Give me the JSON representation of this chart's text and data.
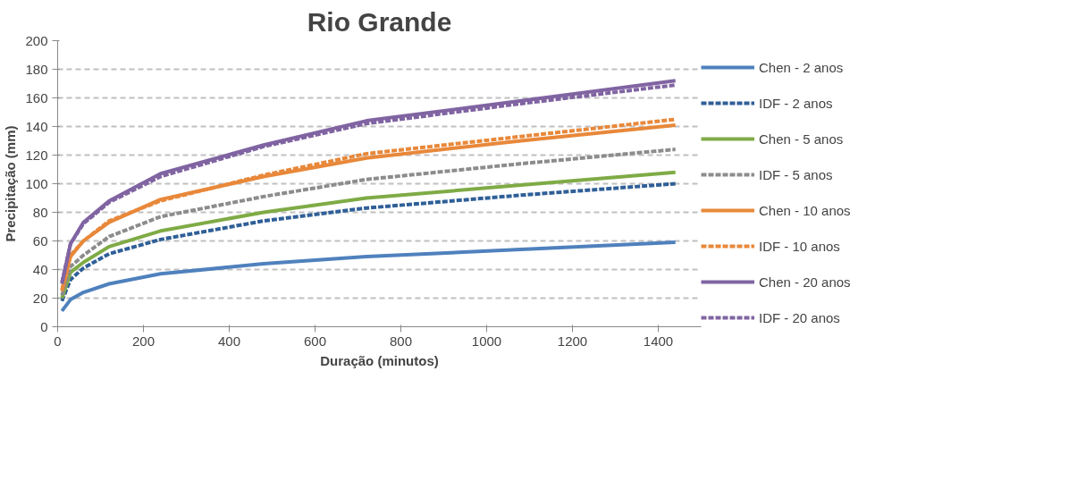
{
  "chart_data": {
    "type": "line",
    "title": "Rio Grande",
    "xlabel": "Duração (minutos)",
    "ylabel": "Precipitação (mm)",
    "x": [
      10,
      30,
      60,
      120,
      240,
      480,
      720,
      1080,
      1440
    ],
    "series": [
      {
        "name": "Chen - 2 anos",
        "color": "#4f81bd",
        "line_style": "solid",
        "values": [
          11,
          19,
          24,
          30,
          37,
          44,
          49,
          54,
          59
        ]
      },
      {
        "name": "IDF - 2 anos",
        "color": "#2f5f98",
        "line_style": "dashed",
        "values": [
          18,
          33,
          41,
          51,
          61,
          74,
          83,
          92,
          100
        ]
      },
      {
        "name": "Chen - 5 anos",
        "color": "#7fab46",
        "line_style": "solid",
        "values": [
          20,
          38,
          45,
          56,
          67,
          80,
          90,
          99,
          108
        ]
      },
      {
        "name": "IDF - 5 anos",
        "color": "#8c8c8c",
        "line_style": "dashed",
        "values": [
          22,
          42,
          50,
          63,
          77,
          91,
          103,
          114,
          124
        ]
      },
      {
        "name": "Chen - 10 anos",
        "color": "#e8883a",
        "line_style": "solid",
        "values": [
          25,
          49,
          60,
          73,
          89,
          105,
          118,
          130,
          141
        ]
      },
      {
        "name": "IDF - 10 anos",
        "color": "#e8883a",
        "line_style": "dashed",
        "values": [
          26,
          50,
          60,
          74,
          88,
          106,
          121,
          133,
          145
        ]
      },
      {
        "name": "Chen - 20 anos",
        "color": "#8064a2",
        "line_style": "solid",
        "values": [
          30,
          58,
          73,
          88,
          107,
          127,
          144,
          158,
          172
        ]
      },
      {
        "name": "IDF - 20 anos",
        "color": "#8064a2",
        "line_style": "dashed",
        "values": [
          31,
          58,
          72,
          87,
          105,
          126,
          142,
          156,
          169
        ]
      }
    ],
    "xlim": [
      0,
      1500
    ],
    "xticks": [
      0,
      200,
      400,
      600,
      800,
      1000,
      1200,
      1400
    ],
    "ylim": [
      0,
      200
    ],
    "yticks": [
      0,
      20,
      40,
      60,
      80,
      100,
      120,
      140,
      160,
      180,
      200
    ],
    "grid": "y",
    "legend": "right"
  }
}
